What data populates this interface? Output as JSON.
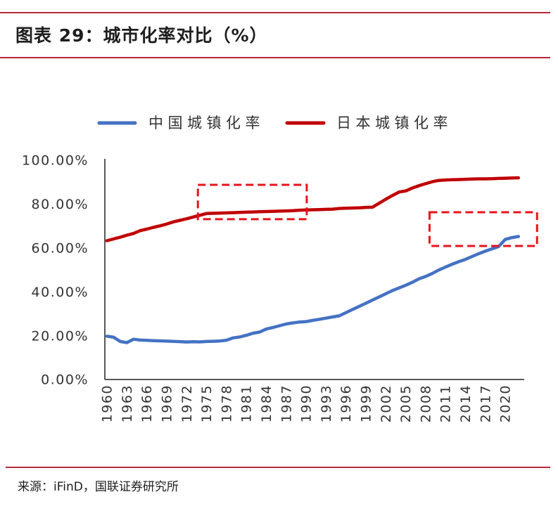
{
  "chart_data": {
    "type": "line",
    "title": "图表 29：城市化率对比（%）",
    "xlabel": "",
    "ylabel": "",
    "xlim": [
      1960,
      2022
    ],
    "ylim": [
      0,
      100
    ],
    "grid": false,
    "legend_position": "top",
    "x": [
      1960,
      1961,
      1962,
      1963,
      1964,
      1965,
      1966,
      1967,
      1968,
      1969,
      1970,
      1971,
      1972,
      1973,
      1974,
      1975,
      1976,
      1977,
      1978,
      1979,
      1980,
      1981,
      1982,
      1983,
      1984,
      1985,
      1986,
      1987,
      1988,
      1989,
      1990,
      1991,
      1992,
      1993,
      1994,
      1995,
      1996,
      1997,
      1998,
      1999,
      2000,
      2001,
      2002,
      2003,
      2004,
      2005,
      2006,
      2007,
      2008,
      2009,
      2010,
      2011,
      2012,
      2013,
      2014,
      2015,
      2016,
      2017,
      2018,
      2019,
      2020,
      2021,
      2022
    ],
    "x_ticks": [
      1960,
      1963,
      1966,
      1969,
      1972,
      1975,
      1978,
      1981,
      1984,
      1987,
      1990,
      1993,
      1996,
      1999,
      2002,
      2005,
      2008,
      2011,
      2014,
      2017,
      2020
    ],
    "x_tick_labels": [
      "1960",
      "1963",
      "1966",
      "1969",
      "1972",
      "1975",
      "1978",
      "1981",
      "1984",
      "1987",
      "1990",
      "1993",
      "1996",
      "1999",
      "2002",
      "2005",
      "2008",
      "2011",
      "2014",
      "2017",
      "2020"
    ],
    "y_ticks": [
      0,
      20,
      40,
      60,
      80,
      100
    ],
    "y_tick_labels": [
      "0.00%",
      "20.00%",
      "40.00%",
      "60.00%",
      "80.00%",
      "100.00%"
    ],
    "series": [
      {
        "name": "中国城镇化率",
        "color": "#4472C4",
        "values": [
          19.75,
          19.29,
          17.33,
          16.84,
          18.37,
          17.98,
          17.86,
          17.74,
          17.62,
          17.5,
          17.38,
          17.26,
          17.13,
          17.2,
          17.16,
          17.34,
          17.44,
          17.55,
          17.92,
          18.96,
          19.39,
          20.16,
          21.13,
          21.62,
          23.01,
          23.71,
          24.52,
          25.32,
          25.81,
          26.21,
          26.41,
          26.94,
          27.46,
          27.99,
          28.51,
          29.04,
          30.48,
          31.91,
          33.35,
          34.78,
          36.22,
          37.66,
          39.09,
          40.53,
          41.76,
          42.99,
          44.34,
          45.89,
          46.99,
          48.34,
          49.95,
          51.27,
          52.57,
          53.73,
          54.77,
          56.1,
          57.35,
          58.52,
          59.58,
          60.6,
          63.89,
          64.72,
          65.22
        ]
      },
      {
        "name": "日本城镇化率",
        "color": "#C00000",
        "values": [
          63.3,
          64.1,
          64.9,
          65.8,
          66.6,
          67.9,
          68.6,
          69.4,
          70.1,
          70.9,
          71.9,
          72.6,
          73.3,
          74.1,
          74.9,
          75.7,
          75.8,
          75.9,
          76.0,
          76.1,
          76.2,
          76.3,
          76.4,
          76.5,
          76.6,
          76.7,
          76.8,
          76.9,
          77.0,
          77.2,
          77.3,
          77.4,
          77.5,
          77.6,
          77.7,
          78.0,
          78.1,
          78.2,
          78.3,
          78.5,
          78.6,
          80.4,
          82.2,
          83.9,
          85.5,
          86.0,
          87.3,
          88.4,
          89.3,
          90.2,
          90.8,
          91.0,
          91.1,
          91.2,
          91.3,
          91.4,
          91.5,
          91.5,
          91.6,
          91.7,
          91.8,
          91.9,
          92.0
        ]
      }
    ],
    "annotations": [
      {
        "type": "dashed-box",
        "color": "#E8131B",
        "x_range": [
          1973.7,
          1990.1
        ],
        "y_range": [
          73.1,
          88.8
        ]
      },
      {
        "type": "dashed-box",
        "color": "#E8131B",
        "x_range": [
          2008.6,
          2024.8
        ],
        "y_range": [
          60.9,
          76.3
        ]
      }
    ]
  },
  "source": "来源：iFinD，国联证券研究所"
}
